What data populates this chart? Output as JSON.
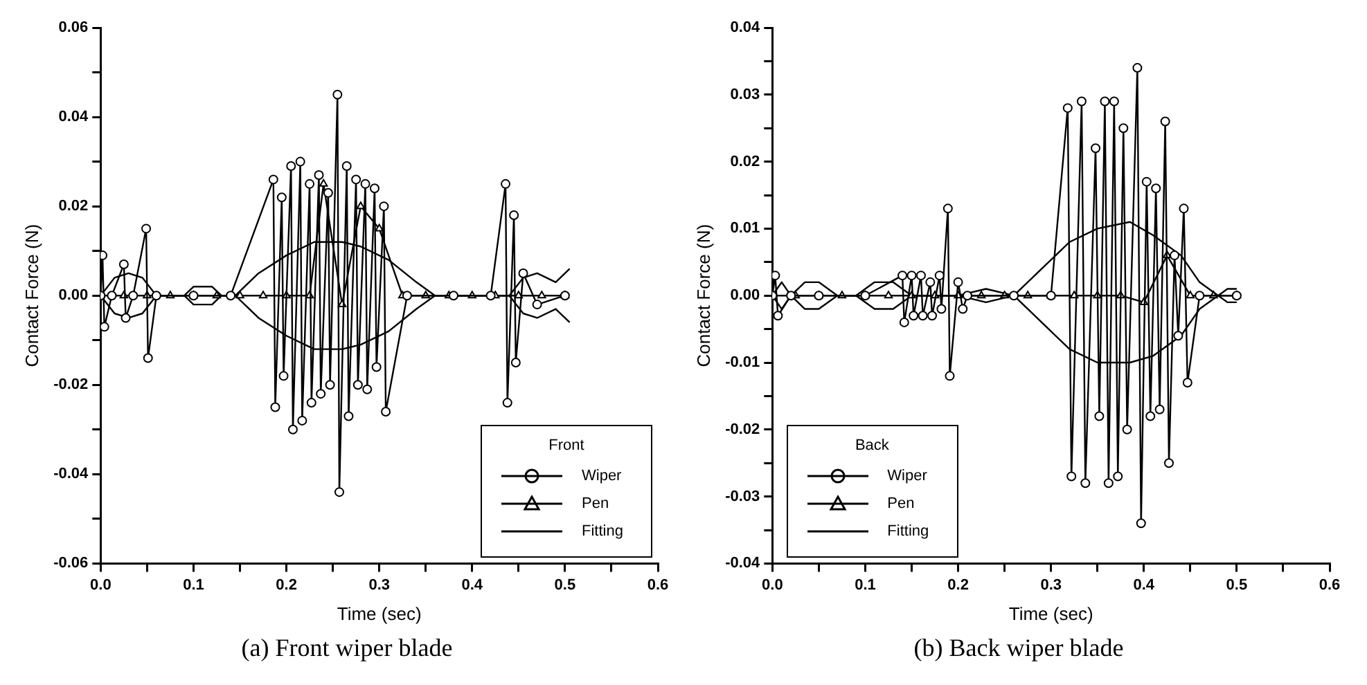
{
  "chart_data": [
    {
      "type": "line",
      "title": "(a) Front wiper blade",
      "xlabel": "Time (sec)",
      "ylabel": "Contact Force (N)",
      "legend_title": "Front",
      "legend": "bottom right",
      "xlim": [
        0,
        0.6
      ],
      "xticks": [
        {
          "value": 0,
          "label": "0.0"
        },
        {
          "value": 0.05,
          "label": null
        },
        0.1,
        {
          "value": 0.15,
          "label": null
        },
        0.2,
        {
          "value": 0.25,
          "label": null
        },
        0.3,
        {
          "value": 0.35,
          "label": null
        },
        0.4,
        {
          "value": 0.45,
          "label": null
        },
        0.5,
        {
          "value": 0.55,
          "label": null
        },
        0.6
      ],
      "ylim": [
        -0.06,
        0.06
      ],
      "yticks": [
        {
          "value": -0.06,
          "label": "-0.06"
        },
        {
          "value": -0.05,
          "label": null
        },
        {
          "value": -0.04,
          "label": "-0.04"
        },
        {
          "value": -0.03,
          "label": null
        },
        {
          "value": -0.02,
          "label": "-0.02"
        },
        {
          "value": -0.01,
          "label": null
        },
        {
          "value": 0,
          "label": "0.00"
        },
        {
          "value": 0.01,
          "label": null
        },
        {
          "value": 0.02,
          "label": "0.02"
        },
        {
          "value": 0.03,
          "label": null
        },
        {
          "value": 0.04,
          "label": "0.04"
        },
        {
          "value": 0.05,
          "label": null
        },
        {
          "value": 0.06,
          "label": "0.06"
        }
      ],
      "series": [
        {
          "name": "Wiper",
          "color": "#000000",
          "marker": "circle",
          "x": [
            0,
            0.002,
            0.004,
            0.012,
            0.025,
            0.027,
            0.035,
            0.049,
            0.051,
            0.06,
            0.1,
            0.14,
            0.186,
            0.188,
            0.195,
            0.197,
            0.205,
            0.207,
            0.215,
            0.217,
            0.225,
            0.227,
            0.235,
            0.237,
            0.245,
            0.247,
            0.255,
            0.257,
            0.265,
            0.267,
            0.275,
            0.277,
            0.285,
            0.287,
            0.295,
            0.297,
            0.305,
            0.307,
            0.33,
            0.38,
            0.42,
            0.436,
            0.438,
            0.445,
            0.447,
            0.455,
            0.47,
            0.5
          ],
          "values": [
            0,
            0.009,
            -0.007,
            0,
            0.007,
            -0.005,
            0,
            0.015,
            -0.014,
            0,
            0,
            0,
            0.026,
            -0.025,
            0.022,
            -0.018,
            0.029,
            -0.03,
            0.03,
            -0.028,
            0.025,
            -0.024,
            0.027,
            -0.022,
            0.023,
            -0.02,
            0.045,
            -0.044,
            0.029,
            -0.027,
            0.026,
            -0.02,
            0.025,
            -0.021,
            0.024,
            -0.016,
            0.02,
            -0.026,
            0,
            0,
            0,
            0.025,
            -0.024,
            0.018,
            -0.015,
            0.005,
            -0.002,
            0
          ]
        },
        {
          "name": "Pen",
          "color": "#000000",
          "marker": "triangle",
          "x": [
            0,
            0.025,
            0.05,
            0.075,
            0.1,
            0.125,
            0.15,
            0.175,
            0.2,
            0.225,
            0.24,
            0.26,
            0.28,
            0.3,
            0.325,
            0.35,
            0.375,
            0.4,
            0.425,
            0.45,
            0.475,
            0.5
          ],
          "values": [
            0,
            0,
            0,
            0,
            0,
            0,
            0,
            0,
            0,
            0,
            0.025,
            -0.002,
            0.02,
            0.015,
            0,
            0,
            0,
            0,
            0,
            0,
            0,
            0
          ]
        },
        {
          "name": "Fitting",
          "color": "#000000",
          "marker": "none",
          "x": [
            0,
            0.015,
            0.03,
            0.045,
            0.06,
            0.09,
            0.1,
            0.12,
            0.13,
            0.145,
            0.17,
            0.2,
            0.23,
            0.26,
            0.28,
            0.31,
            0.34,
            0.36,
            0.44,
            0.455,
            0.47,
            0.49,
            0.505
          ],
          "values": [
            0,
            0.004,
            0.005,
            0.004,
            0,
            0,
            0.002,
            0.002,
            0,
            0,
            0.005,
            0.009,
            0.012,
            0.012,
            0.011,
            0.008,
            0.003,
            0,
            0,
            0.004,
            0.005,
            0.003,
            0.006
          ]
        },
        {
          "color": "#000000",
          "marker": "none",
          "x": [
            0,
            0.015,
            0.03,
            0.045,
            0.06,
            0.09,
            0.1,
            0.12,
            0.13,
            0.145,
            0.17,
            0.2,
            0.23,
            0.26,
            0.28,
            0.31,
            0.34,
            0.36,
            0.44,
            0.455,
            0.47,
            0.49,
            0.505
          ],
          "values": [
            0,
            -0.004,
            -0.005,
            -0.004,
            0,
            0,
            -0.002,
            -0.002,
            0,
            0,
            -0.005,
            -0.009,
            -0.012,
            -0.012,
            -0.011,
            -0.008,
            -0.003,
            0,
            0,
            -0.004,
            -0.005,
            -0.003,
            -0.006
          ]
        }
      ]
    },
    {
      "type": "line",
      "title": "(b) Back wiper blade",
      "xlabel": "Time (sec)",
      "ylabel": "Contact Force (N)",
      "legend_title": "Back",
      "legend": "bottom left",
      "xlim": [
        0,
        0.6
      ],
      "xticks": [
        {
          "value": 0,
          "label": "0.0"
        },
        {
          "value": 0.05,
          "label": null
        },
        0.1,
        {
          "value": 0.15,
          "label": null
        },
        0.2,
        {
          "value": 0.25,
          "label": null
        },
        0.3,
        {
          "value": 0.35,
          "label": null
        },
        0.4,
        {
          "value": 0.45,
          "label": null
        },
        0.5,
        {
          "value": 0.55,
          "label": null
        },
        0.6
      ],
      "ylim": [
        -0.04,
        0.04
      ],
      "yticks": [
        {
          "value": -0.04,
          "label": "-0.04"
        },
        {
          "value": -0.035,
          "label": null
        },
        {
          "value": -0.03,
          "label": "-0.03"
        },
        {
          "value": -0.025,
          "label": null
        },
        {
          "value": -0.02,
          "label": "-0.02"
        },
        {
          "value": -0.015,
          "label": null
        },
        {
          "value": -0.01,
          "label": "-0.01"
        },
        {
          "value": -0.005,
          "label": null
        },
        {
          "value": 0,
          "label": "0.00"
        },
        {
          "value": 0.005,
          "label": null
        },
        {
          "value": 0.01,
          "label": "0.01"
        },
        {
          "value": 0.015,
          "label": null
        },
        {
          "value": 0.02,
          "label": "0.02"
        },
        {
          "value": 0.025,
          "label": null
        },
        {
          "value": 0.03,
          "label": "0.03"
        },
        {
          "value": 0.035,
          "label": null
        },
        {
          "value": 0.04,
          "label": "0.04"
        }
      ],
      "series": [
        {
          "name": "Wiper",
          "color": "#000000",
          "marker": "circle",
          "x": [
            0,
            0.003,
            0.006,
            0.02,
            0.05,
            0.1,
            0.14,
            0.142,
            0.15,
            0.152,
            0.16,
            0.162,
            0.17,
            0.172,
            0.18,
            0.182,
            0.189,
            0.191,
            0.2,
            0.205,
            0.21,
            0.26,
            0.3,
            0.318,
            0.322,
            0.333,
            0.337,
            0.348,
            0.352,
            0.358,
            0.362,
            0.368,
            0.372,
            0.378,
            0.382,
            0.393,
            0.397,
            0.403,
            0.407,
            0.413,
            0.417,
            0.423,
            0.427,
            0.433,
            0.437,
            0.443,
            0.447,
            0.46,
            0.5
          ],
          "values": [
            0,
            0.003,
            -0.003,
            0,
            0,
            0,
            0.003,
            -0.004,
            0.003,
            -0.003,
            0.003,
            -0.003,
            0.002,
            -0.003,
            0.003,
            -0.002,
            0.013,
            -0.012,
            0.002,
            -0.002,
            0,
            0,
            0,
            0.028,
            -0.027,
            0.029,
            -0.028,
            0.022,
            -0.018,
            0.029,
            -0.028,
            0.029,
            -0.027,
            0.025,
            -0.02,
            0.034,
            -0.034,
            0.017,
            -0.018,
            0.016,
            -0.017,
            0.026,
            -0.025,
            0.006,
            -0.006,
            0.013,
            -0.013,
            0,
            0
          ]
        },
        {
          "name": "Pen",
          "color": "#000000",
          "marker": "triangle",
          "x": [
            0,
            0.025,
            0.05,
            0.075,
            0.1,
            0.125,
            0.15,
            0.175,
            0.2,
            0.225,
            0.25,
            0.275,
            0.3,
            0.325,
            0.35,
            0.375,
            0.4,
            0.425,
            0.45,
            0.475,
            0.5
          ],
          "values": [
            0,
            0,
            0,
            0,
            0,
            0,
            0,
            0,
            0,
            0,
            0,
            0,
            0,
            0,
            0,
            0,
            -0.001,
            0.006,
            0,
            0,
            0
          ]
        },
        {
          "name": "Fitting",
          "color": "#000000",
          "marker": "none",
          "x": [
            0,
            0.01,
            0.02,
            0.035,
            0.05,
            0.07,
            0.09,
            0.11,
            0.13,
            0.15,
            0.2,
            0.23,
            0.26,
            0.29,
            0.32,
            0.35,
            0.385,
            0.41,
            0.44,
            0.46,
            0.48,
            0.49,
            0.5
          ],
          "values": [
            0,
            0.002,
            0,
            0.002,
            0.002,
            0,
            0,
            0.002,
            0.002,
            0,
            0,
            0.001,
            0,
            0.004,
            0.008,
            0.01,
            0.011,
            0.009,
            0.006,
            0.002,
            0,
            0.001,
            0.001
          ]
        },
        {
          "color": "#000000",
          "marker": "none",
          "x": [
            0,
            0.01,
            0.02,
            0.035,
            0.05,
            0.07,
            0.09,
            0.11,
            0.13,
            0.15,
            0.2,
            0.23,
            0.26,
            0.29,
            0.32,
            0.35,
            0.385,
            0.41,
            0.44,
            0.46,
            0.48,
            0.49,
            0.5
          ],
          "values": [
            0,
            -0.002,
            0,
            -0.002,
            -0.002,
            0,
            0,
            -0.002,
            -0.002,
            0,
            0,
            -0.001,
            0,
            -0.004,
            -0.008,
            -0.01,
            -0.01,
            -0.009,
            -0.006,
            -0.002,
            0,
            -0.001,
            -0.001
          ]
        }
      ]
    }
  ]
}
